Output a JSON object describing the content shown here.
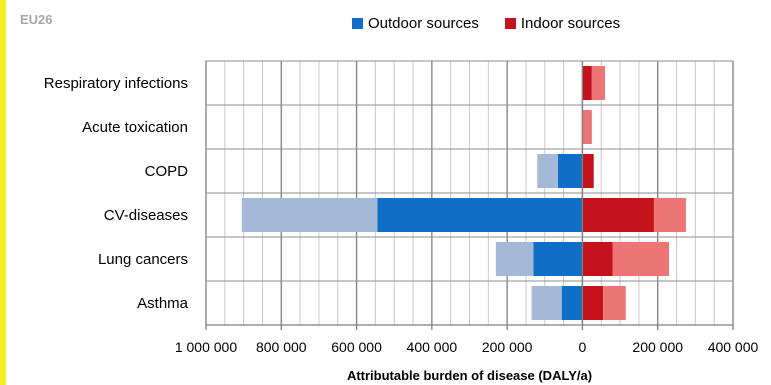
{
  "panel_label": "EU26",
  "colors": {
    "outdoor_dark": "#0f6fc6",
    "outdoor_light": "#a4b9d8",
    "indoor_dark": "#c4121d",
    "indoor_light": "#ec7676",
    "accent": "#f2ee2a"
  },
  "legend": [
    {
      "label": "Outdoor sources",
      "color": "#0f6fc6"
    },
    {
      "label": "Indoor sources",
      "color": "#c4121d"
    }
  ],
  "chart_data": {
    "type": "bar",
    "orientation": "horizontal",
    "stacked": true,
    "categories": [
      "Respiratory infections",
      "Acute toxication",
      "COPD",
      "CV-diseases",
      "Lung cancers",
      "Asthma"
    ],
    "series": [
      {
        "name": "Outdoor sources",
        "values": [
          0,
          0,
          -65000,
          -545000,
          -130000,
          -55000
        ]
      },
      {
        "name": "Outdoor sources",
        "values": [
          0,
          0,
          -55000,
          -360000,
          -100000,
          -80000
        ]
      },
      {
        "name": "Indoor sources",
        "values": [
          25000,
          0,
          30000,
          190000,
          80000,
          55000
        ]
      },
      {
        "name": "Indoor sources",
        "values": [
          35000,
          25000,
          0,
          85000,
          150000,
          60000
        ]
      }
    ],
    "xlim": [
      -1000000,
      400000
    ],
    "xticks": [
      -1000000,
      -800000,
      -600000,
      -400000,
      -200000,
      0,
      200000,
      400000
    ],
    "xtick_labels": [
      "1 000 000",
      "800 000",
      "600 000",
      "400 000",
      "200 000",
      "0",
      "200 000",
      "400 000"
    ],
    "xlabel": "Attributable burden of disease (DALY/a)",
    "ylabel": "",
    "grid": true,
    "legend_position": "top"
  }
}
